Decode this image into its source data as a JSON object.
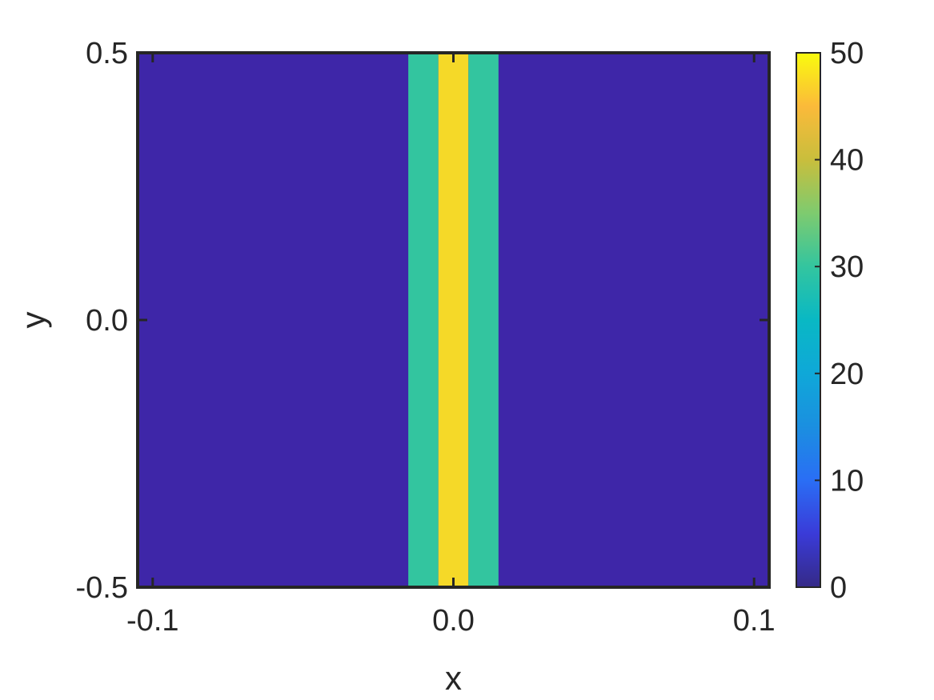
{
  "chart_data": {
    "type": "heatmap",
    "xlabel": "x",
    "ylabel": "y",
    "xlim": [
      -0.105,
      0.105
    ],
    "ylim": [
      -0.5,
      0.5
    ],
    "x_ticks": [
      -0.1,
      0.0,
      0.1
    ],
    "x_tick_labels": [
      "-0.1",
      "0.0",
      "0.1"
    ],
    "y_ticks": [
      -0.5,
      0.0,
      0.5
    ],
    "y_tick_labels": [
      "-0.5",
      "0.0",
      "0.5"
    ],
    "background_value": 0,
    "bands": [
      {
        "x_start": -0.015,
        "x_end": -0.005,
        "value": 30
      },
      {
        "x_start": -0.005,
        "x_end": 0.005,
        "value": 50
      },
      {
        "x_start": 0.005,
        "x_end": 0.015,
        "value": 30
      }
    ],
    "colorbar": {
      "min": 0,
      "max": 50,
      "ticks": [
        0,
        10,
        20,
        30,
        40,
        50
      ],
      "tick_labels": [
        "0",
        "10",
        "20",
        "30",
        "40",
        "50"
      ],
      "colormap": "parula"
    },
    "colors": {
      "low": "#3e26a8",
      "mid": "#33c59f",
      "high": "#f5d928"
    }
  }
}
